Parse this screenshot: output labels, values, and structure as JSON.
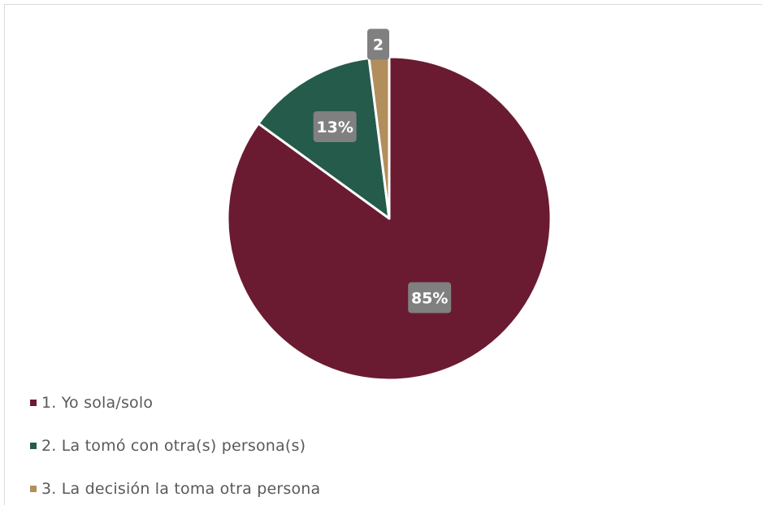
{
  "chart_data": {
    "type": "pie",
    "title": "",
    "categories": [
      "1. Yo sola/solo",
      "2. La tomó con otra(s) persona(s)",
      "3. La decisión la toma otra persona"
    ],
    "values": [
      85,
      13,
      2
    ],
    "data_labels": [
      "85%",
      "13%",
      "2"
    ],
    "colors": [
      "#6a1b31",
      "#255b4b",
      "#b28e5c"
    ],
    "label_box_color": "#808080",
    "legend_position": "bottom-left"
  }
}
